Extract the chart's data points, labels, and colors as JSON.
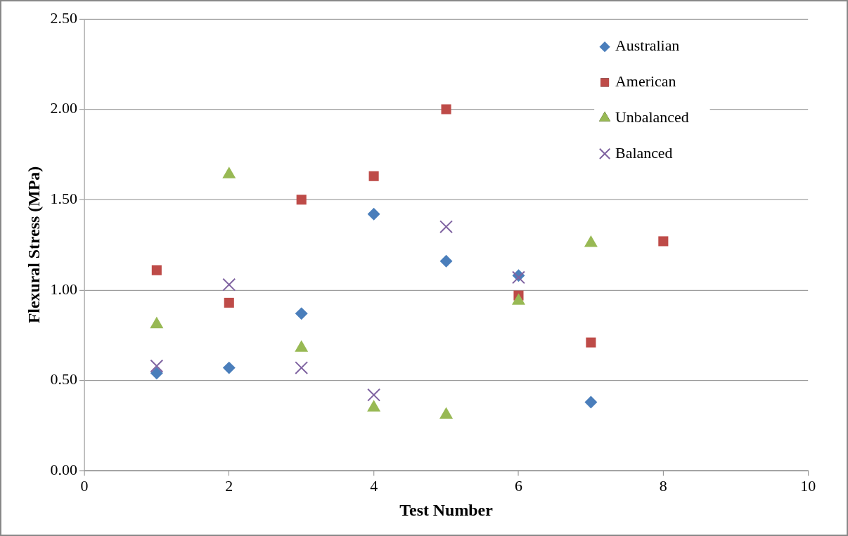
{
  "chart_data": {
    "type": "scatter",
    "xlabel": "Test Number",
    "ylabel": "Flexural Stress (MPa)",
    "xlim": [
      0,
      10
    ],
    "xticks": [
      0,
      2,
      4,
      6,
      8,
      10
    ],
    "ylim": [
      0,
      2.5
    ],
    "yticks": [
      {
        "value": 0,
        "label": "0.00"
      },
      {
        "value": 0.5,
        "label": "0.50"
      },
      {
        "value": 1,
        "label": "1.00"
      },
      {
        "value": 1.5,
        "label": "1.50"
      },
      {
        "value": 2,
        "label": "2.00"
      },
      {
        "value": 2.5,
        "label": "2.50"
      }
    ],
    "grid": "y",
    "legend": "top right",
    "series": [
      {
        "name": "Australian",
        "color": "#4a7ebb",
        "marker": "diamond",
        "x": [
          1,
          2,
          3,
          4,
          5,
          6,
          7
        ],
        "values": [
          0.54,
          0.57,
          0.87,
          1.42,
          1.16,
          1.08,
          0.38
        ]
      },
      {
        "name": "American",
        "color": "#be4b48",
        "marker": "square",
        "x": [
          1,
          2,
          3,
          4,
          5,
          6,
          7,
          8
        ],
        "values": [
          1.11,
          0.93,
          1.5,
          1.63,
          2.0,
          0.97,
          0.71,
          1.27
        ]
      },
      {
        "name": "Unbalanced",
        "color": "#98b954",
        "marker": "triangle",
        "x": [
          1,
          2,
          3,
          4,
          5,
          6,
          7
        ],
        "values": [
          0.81,
          1.64,
          0.68,
          0.35,
          0.31,
          0.94,
          1.26
        ]
      },
      {
        "name": "Balanced",
        "color": "#7f63a1",
        "marker": "cross",
        "x": [
          1,
          2,
          3,
          4,
          5,
          6
        ],
        "values": [
          0.58,
          1.03,
          0.57,
          0.42,
          1.35,
          1.07
        ]
      }
    ]
  }
}
